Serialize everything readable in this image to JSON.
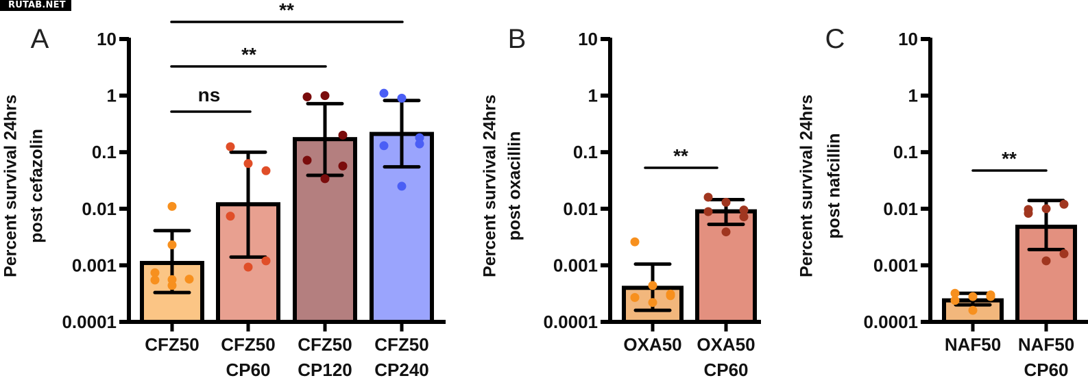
{
  "watermark": "RUTAB.NET",
  "chart_data": [
    {
      "type": "bar",
      "panel": "A",
      "yscale": "log",
      "ylim": [
        0.0001,
        10
      ],
      "yticks": [
        "10",
        "1",
        "0.1",
        "0.01",
        "0.001",
        "0.0001"
      ],
      "ytick_values": [
        10,
        1,
        0.1,
        0.01,
        0.001,
        0.0001
      ],
      "ylabel": [
        "Percent survival 24hrs",
        "post cefazolin"
      ],
      "xlabel": "",
      "grid": false,
      "categories": [
        [
          "CFZ50"
        ],
        [
          "CFZ50",
          "CP60"
        ],
        [
          "CFZ50",
          "CP120"
        ],
        [
          "CFZ50",
          "CP240"
        ]
      ],
      "values": [
        0.0011,
        0.012,
        0.17,
        0.21
      ],
      "error_low": [
        0.00033,
        0.0014,
        0.039,
        0.055
      ],
      "error_high": [
        0.0041,
        0.1,
        0.72,
        0.82
      ],
      "points": [
        [
          0.011,
          0.0023,
          0.00074,
          0.00056,
          0.00057,
          0.00055,
          0.00044
        ],
        [
          0.125,
          0.063,
          0.047,
          0.0074,
          0.0012,
          0.00093
        ],
        [
          0.95,
          1.0,
          0.2,
          0.072,
          0.057,
          0.034
        ],
        [
          1.1,
          0.9,
          0.18,
          0.13,
          0.14,
          0.025
        ]
      ],
      "bar_colors": [
        "#fbc585",
        "#e8a090",
        "#b47f7f",
        "#9aa4fd"
      ],
      "point_colors": [
        "#f7901e",
        "#e04e28",
        "#7a0c0c",
        "#4a5ef5"
      ],
      "significance": [
        {
          "from": 0,
          "to": 1,
          "label": "ns"
        },
        {
          "from": 0,
          "to": 2,
          "label": "**"
        },
        {
          "from": 0,
          "to": 3,
          "label": "**"
        }
      ]
    },
    {
      "type": "bar",
      "panel": "B",
      "yscale": "log",
      "ylim": [
        0.0001,
        10
      ],
      "yticks": [
        "10",
        "1",
        "0.1",
        "0.01",
        "0.001",
        "0.0001"
      ],
      "ytick_values": [
        10,
        1,
        0.1,
        0.01,
        0.001,
        0.0001
      ],
      "ylabel": [
        "Percent survival 24hrs",
        "post oxacillin"
      ],
      "xlabel": "",
      "grid": false,
      "categories": [
        [
          "OXA50"
        ],
        [
          "OXA50",
          "CP60"
        ]
      ],
      "values": [
        0.0004,
        0.009
      ],
      "error_low": [
        0.00016,
        0.0053
      ],
      "error_high": [
        0.00105,
        0.0145
      ],
      "points": [
        [
          0.0026,
          0.00044,
          0.00031,
          0.00027,
          0.00029,
          0.00022
        ],
        [
          0.016,
          0.013,
          0.0095,
          0.0089,
          0.0072,
          0.0039
        ]
      ],
      "bar_colors": [
        "#f2b77c",
        "#e3907f"
      ],
      "point_colors": [
        "#f7901e",
        "#a0361f"
      ],
      "significance": [
        {
          "from": 0,
          "to": 1,
          "label": "**"
        }
      ]
    },
    {
      "type": "bar",
      "panel": "C",
      "yscale": "log",
      "ylim": [
        0.0001,
        10
      ],
      "yticks": [
        "10",
        "1",
        "0.1",
        "0.01",
        "0.001",
        "0.0001"
      ],
      "ytick_values": [
        10,
        1,
        0.1,
        0.01,
        0.001,
        0.0001
      ],
      "ylabel": [
        "Percent survival 24hrs",
        "post nafcillin"
      ],
      "xlabel": "",
      "grid": false,
      "categories": [
        [
          "NAF50"
        ],
        [
          "NAF50",
          "CP60"
        ]
      ],
      "values": [
        0.00024,
        0.0048
      ],
      "error_low": [
        0.0002,
        0.0019
      ],
      "error_high": [
        0.00032,
        0.014
      ],
      "points": [
        [
          0.00032,
          0.00028,
          0.0003,
          0.00024,
          0.00028,
          0.00016
        ],
        [
          0.0097,
          0.01,
          0.012,
          0.0083,
          0.0016,
          0.0012
        ]
      ],
      "bar_colors": [
        "#f2b77c",
        "#e3907f"
      ],
      "point_colors": [
        "#f7901e",
        "#a0361f"
      ],
      "significance": [
        {
          "from": 0,
          "to": 1,
          "label": "**"
        }
      ]
    }
  ]
}
